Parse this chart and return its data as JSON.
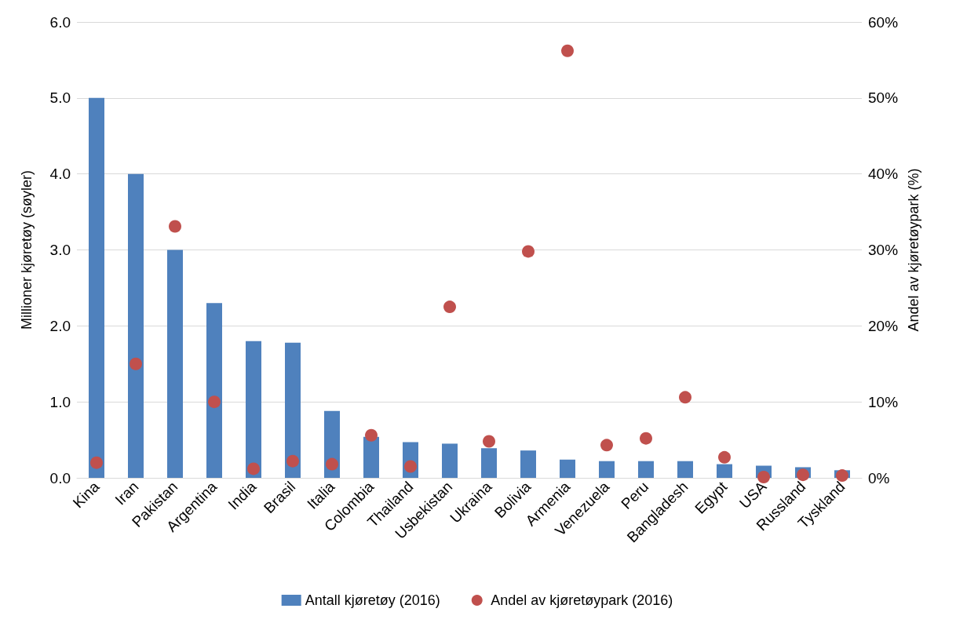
{
  "chart_data": {
    "type": "bar",
    "categories": [
      "Kina",
      "Iran",
      "Pakistan",
      "Argentina",
      "India",
      "Brasil",
      "Italia",
      "Colombia",
      "Thailand",
      "Usbekistan",
      "Ukraina",
      "Bolivia",
      "Armenia",
      "Venezuela",
      "Peru",
      "Bangladesh",
      "Egypt",
      "USA",
      "Russland",
      "Tyskland"
    ],
    "ylabel": "Millioner kjøretøy (søyler)",
    "y2label": "Andel av kjøretøypark (%)",
    "series": [
      {
        "name": "Antall kjøretøy (2016)",
        "color": "#4f81bd",
        "values": [
          5.0,
          4.0,
          3.0,
          2.3,
          1.8,
          1.78,
          0.88,
          0.54,
          0.47,
          0.45,
          0.39,
          0.36,
          0.24,
          0.22,
          0.22,
          0.22,
          0.18,
          0.16,
          0.14,
          0.1
        ]
      },
      {
        "name": "Andel av kjøretøypark (2016)",
        "type": "scatter",
        "axis": "y2",
        "marker": "circle",
        "color": "#c0504d",
        "values": [
          2.0,
          15.0,
          33.1,
          10.0,
          1.2,
          2.2,
          1.8,
          5.6,
          1.5,
          22.5,
          4.8,
          29.8,
          56.2,
          4.3,
          5.2,
          10.6,
          2.7,
          0.1,
          0.4,
          0.3
        ]
      }
    ],
    "ylim": [
      0,
      6
    ],
    "yticks": [
      {
        "value": 0,
        "label": "0.0"
      },
      {
        "value": 1,
        "label": "1.0"
      },
      {
        "value": 2,
        "label": "2.0"
      },
      {
        "value": 3,
        "label": "3.0"
      },
      {
        "value": 4,
        "label": "4.0"
      },
      {
        "value": 5,
        "label": "5.0"
      },
      {
        "value": 6,
        "label": "6.0"
      }
    ],
    "y2lim": [
      0,
      60
    ],
    "y2ticks": [
      {
        "value": 0,
        "label": "0%"
      },
      {
        "value": 10,
        "label": "10%"
      },
      {
        "value": 20,
        "label": "20%"
      },
      {
        "value": 30,
        "label": "30%"
      },
      {
        "value": 40,
        "label": "40%"
      },
      {
        "value": 50,
        "label": "50%"
      },
      {
        "value": 60,
        "label": "60%"
      }
    ],
    "grid": "y",
    "legend": "bottom"
  }
}
